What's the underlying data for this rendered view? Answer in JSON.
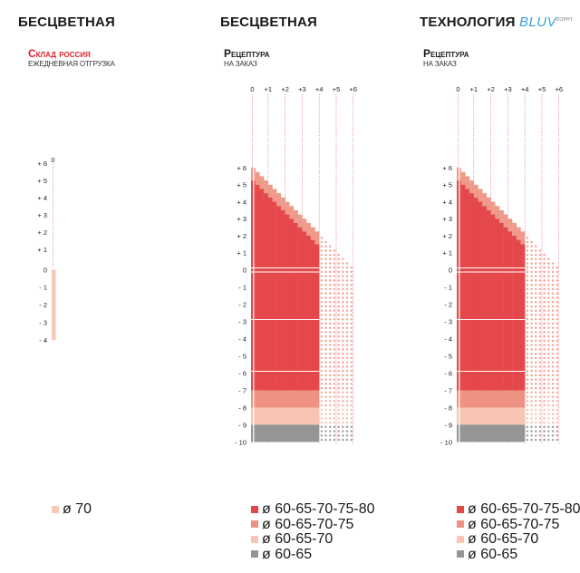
{
  "panels": [
    {
      "title": "БЕСЦВЕТНАЯ",
      "brand": "",
      "brand_sup": "",
      "subtitle": "Склад россия",
      "subtitle_note": "ЕЖЕДНЕВНАЯ ОТГРУЗКА"
    },
    {
      "title": "БЕСЦВЕТНАЯ",
      "brand": "",
      "brand_sup": "",
      "subtitle": "Рецептура",
      "subtitle_note": "НА ЗАКАЗ"
    },
    {
      "title": "ТЕХНОЛОГИЯ",
      "brand": "BLUV",
      "brand_sup": "ZOPHT",
      "subtitle": "Рецептура",
      "subtitle_note": "НА ЗАКАЗ"
    }
  ],
  "colors": {
    "d80": "#e5484a",
    "d75": "#ee9384",
    "d70": "#f8c5b4",
    "d65": "#959595",
    "d70_stock": "#f6c8b8",
    "guide": "#d8414a"
  },
  "chart_data": [
    {
      "type": "heatmap",
      "title": "БЕСЦВЕТНАЯ",
      "x_ticks": [
        "0"
      ],
      "sph_ticks": [
        "+ 6",
        "+ 5",
        "+ 4",
        "+ 3",
        "+ 2",
        "+ 1",
        "0",
        "- 1",
        "- 2",
        "- 3",
        "- 4"
      ],
      "x_cyl": [
        0
      ],
      "sph_range": [
        -4,
        6
      ],
      "available": [
        {
          "diameter": "ø 70",
          "color": "#f6c8b8",
          "sph_min": -4,
          "sph_max": 0,
          "cyl_max": 0
        }
      ],
      "legend": [
        {
          "label": "ø 70",
          "color": "#f6c8b8"
        }
      ]
    },
    {
      "type": "heatmap",
      "title": "БЕСЦВЕТНАЯ",
      "x_ticks": [
        "0",
        "+1",
        "+2",
        "+3",
        "+4",
        "+5",
        "+6"
      ],
      "sph_ticks": [
        "+ 6",
        "+ 5",
        "+ 4",
        "+ 3",
        "+ 2",
        "+ 1",
        "0",
        "- 1",
        "- 2",
        "- 3",
        "- 4",
        "- 5",
        "- 6",
        "- 7",
        "- 8",
        "- 9",
        "- 10"
      ],
      "sph_range": [
        -10,
        6
      ],
      "cyl_range": [
        0,
        6
      ],
      "zones": [
        {
          "diameter": "ø 60-65-70-75-80",
          "sph_min": -7,
          "sph_max": 6,
          "cyl_max": 4,
          "sum_max": 6
        },
        {
          "diameter": "ø 60-65-70-75",
          "sph_min": -8,
          "sph_max": -7,
          "cyl_max": 4
        },
        {
          "diameter": "ø 60-65-70",
          "sph_min": -9,
          "sph_max": -8,
          "cyl_max": 4
        },
        {
          "diameter": "ø 60-65",
          "sph_min": -10,
          "sph_max": -9,
          "cyl_max": 4
        }
      ],
      "extended_dotted": {
        "cyl_min": 4,
        "cyl_max": 6,
        "sph_min": -10,
        "sum_max": 6
      },
      "legend": [
        {
          "label": "ø 60-65-70-75-80",
          "color": "#e5484a"
        },
        {
          "label": "ø 60-65-70-75",
          "color": "#ee9384"
        },
        {
          "label": "ø 60-65-70",
          "color": "#f8c5b4"
        },
        {
          "label": "ø 60-65",
          "color": "#959595"
        }
      ]
    },
    {
      "type": "heatmap",
      "title": "ТЕХНОЛОГИЯ BLUV",
      "x_ticks": [
        "0",
        "+1",
        "+2",
        "+3",
        "+4",
        "+5",
        "+6"
      ],
      "sph_ticks": [
        "+ 6",
        "+ 5",
        "+ 4",
        "+ 3",
        "+ 2",
        "+ 1",
        "0",
        "- 1",
        "- 2",
        "- 3",
        "- 4",
        "- 5",
        "- 6",
        "- 7",
        "- 8",
        "- 9",
        "- 10"
      ],
      "sph_range": [
        -10,
        6
      ],
      "cyl_range": [
        0,
        6
      ],
      "zones": [
        {
          "diameter": "ø 60-65-70-75-80",
          "sph_min": -7,
          "sph_max": 6,
          "cyl_max": 4,
          "sum_max": 6
        },
        {
          "diameter": "ø 60-65-70-75",
          "sph_min": -8,
          "sph_max": -7,
          "cyl_max": 4
        },
        {
          "diameter": "ø 60-65-70",
          "sph_min": -9,
          "sph_max": -8,
          "cyl_max": 4
        },
        {
          "diameter": "ø 60-65",
          "sph_min": -10,
          "sph_max": -9,
          "cyl_max": 4
        }
      ],
      "extended_dotted": {
        "cyl_min": 4,
        "cyl_max": 6,
        "sph_min": -10,
        "sum_max": 6
      },
      "legend": [
        {
          "label": "ø 60-65-70-75-80",
          "color": "#e5484a"
        },
        {
          "label": "ø 60-65-70-75",
          "color": "#ee9384"
        },
        {
          "label": "ø 60-65-70",
          "color": "#f8c5b4"
        },
        {
          "label": "ø 60-65",
          "color": "#959595"
        }
      ]
    }
  ]
}
